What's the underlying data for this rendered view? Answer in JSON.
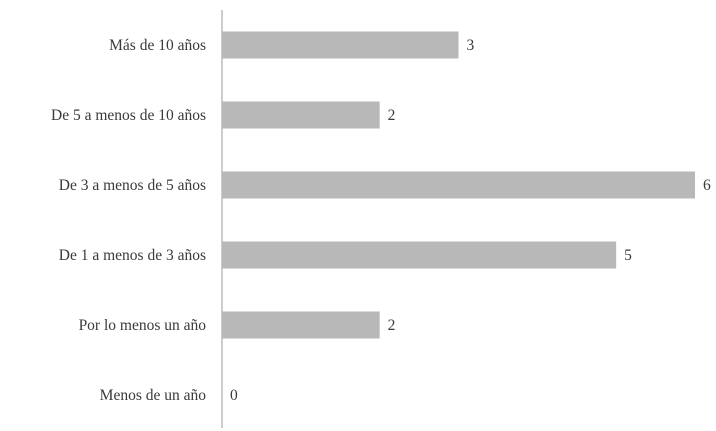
{
  "chart_data": {
    "type": "bar",
    "orientation": "horizontal",
    "categories": [
      "Más de 10 años",
      "De 5 a menos de 10 años",
      "De 3 a menos de 5 años",
      "De 1 a menos de 3 años",
      "Por lo menos un año",
      "Menos de un año"
    ],
    "values": [
      3,
      2,
      6,
      5,
      2,
      0
    ],
    "title": "",
    "xlabel": "",
    "ylabel": "",
    "xlim": [
      0,
      6
    ],
    "grid": false,
    "legend": "none",
    "colors": {
      "bar": "#b8b8b8",
      "axis": "#9a9a9a",
      "text": "#3a3a3a"
    }
  }
}
